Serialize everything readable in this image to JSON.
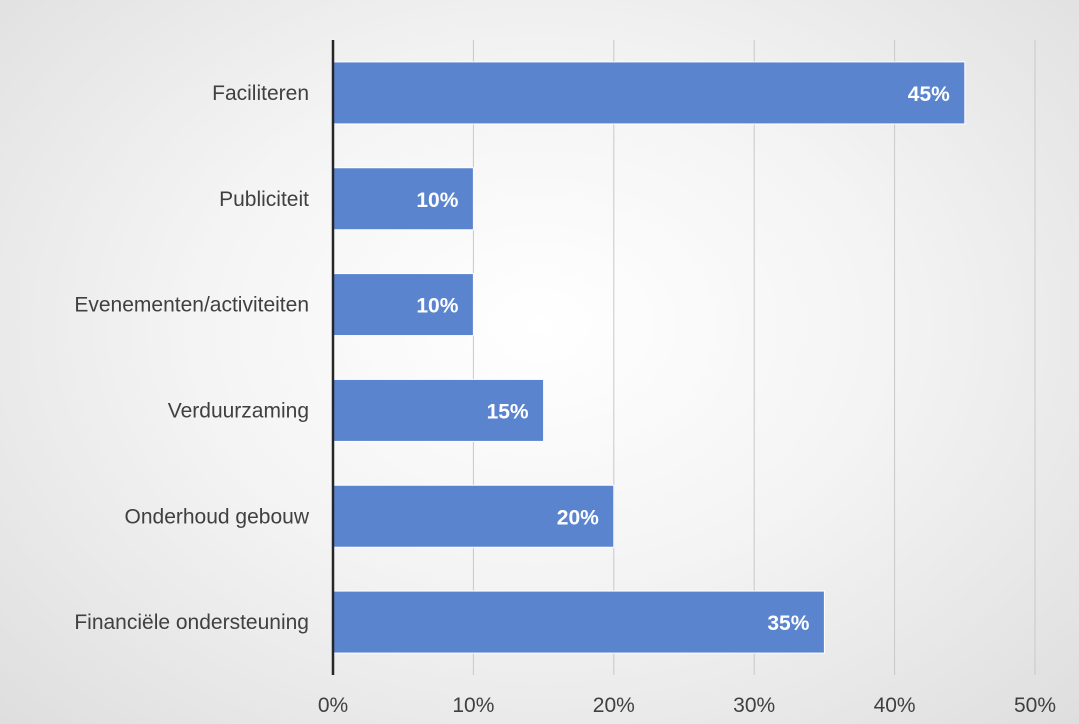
{
  "chart_data": {
    "type": "bar",
    "orientation": "horizontal",
    "categories": [
      "Faciliteren",
      "Publiciteit",
      "Evenementen/activiteiten",
      "Verduurzaming",
      "Onderhoud gebouw",
      "Financiële ondersteuning"
    ],
    "values": [
      45,
      10,
      10,
      15,
      20,
      35
    ],
    "data_labels": [
      "45%",
      "10%",
      "10%",
      "15%",
      "20%",
      "35%"
    ],
    "x_ticks": [
      "0%",
      "10%",
      "20%",
      "30%",
      "40%",
      "50%"
    ],
    "xlim": [
      0,
      50
    ],
    "grid": true,
    "legend": "none",
    "colors": {
      "bar": "#5b84cf",
      "gridline": "#c8c8c8",
      "axis": "#262626",
      "text": "#404040"
    }
  }
}
